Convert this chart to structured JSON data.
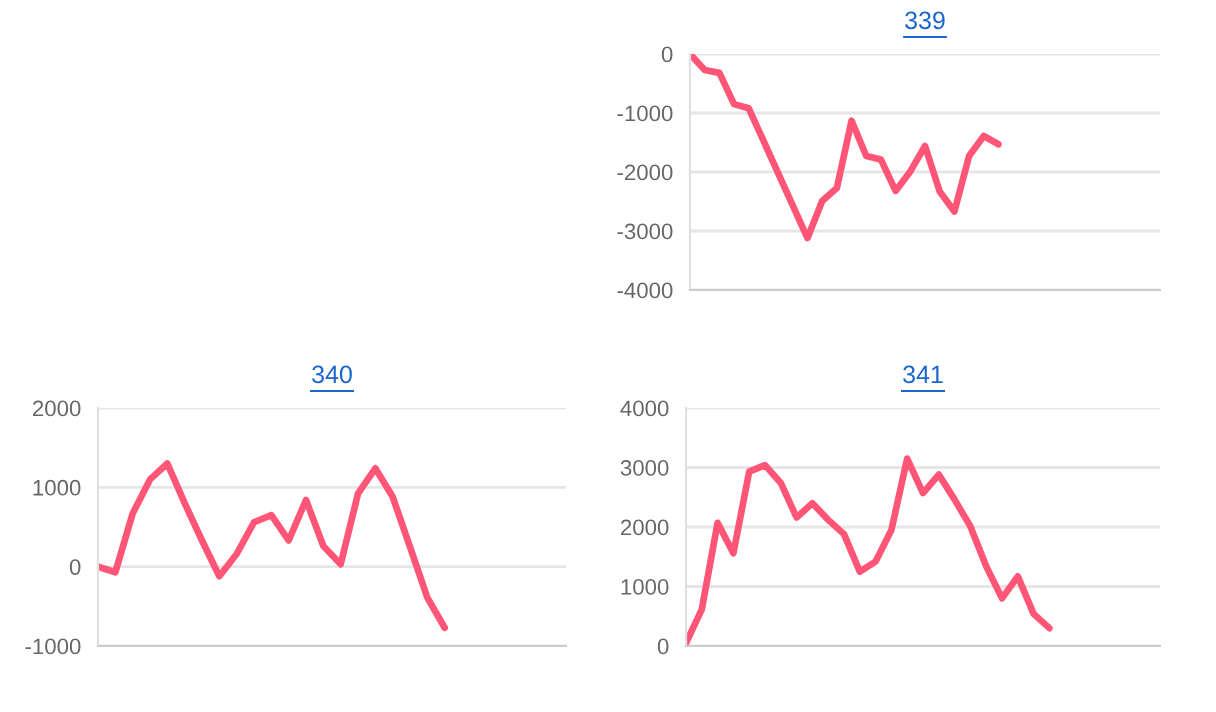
{
  "chart_data": [
    {
      "type": "line",
      "title": "339",
      "categories": [
        null,
        null,
        null,
        null,
        null,
        null,
        null,
        null,
        null,
        null,
        null,
        null,
        null,
        null,
        null,
        null,
        null,
        null,
        null,
        null,
        null,
        null,
        null,
        null,
        null,
        null,
        null,
        null,
        null,
        null,
        null,
        null,
        null
      ],
      "series": [
        {
          "color": "#ff5577",
          "values": [
            0,
            -270,
            -320,
            -850,
            -920,
            -1470,
            -2020,
            -2570,
            -3120,
            -2490,
            -2270,
            -1130,
            -1730,
            -1790,
            -2320,
            -1990,
            -1560,
            -2330,
            -2670,
            -1730,
            -1390,
            -1530,
            null,
            null,
            null,
            null,
            null,
            null,
            null,
            null,
            null,
            null,
            null
          ]
        }
      ],
      "ylim": [
        -4000,
        0
      ],
      "yticks": [
        -4000,
        -3000,
        -2000,
        -1000,
        0
      ],
      "grid": "y",
      "legend": false
    },
    {
      "type": "line",
      "title": "340",
      "categories": [
        null,
        null,
        null,
        null,
        null,
        null,
        null,
        null,
        null,
        null,
        null,
        null,
        null,
        null,
        null,
        null,
        null,
        null,
        null,
        null,
        null,
        null,
        null,
        null,
        null,
        null,
        null,
        null
      ],
      "series": [
        {
          "color": "#ff5577",
          "values": [
            0,
            -70,
            670,
            1100,
            1300,
            800,
            330,
            -120,
            160,
            560,
            650,
            330,
            840,
            260,
            30,
            920,
            1240,
            880,
            250,
            -390,
            -770,
            null,
            null,
            null,
            null,
            null,
            null,
            null
          ]
        }
      ],
      "ylim": [
        -1000,
        2000
      ],
      "yticks": [
        -1000,
        0,
        1000,
        2000
      ],
      "grid": "y",
      "legend": false
    },
    {
      "type": "line",
      "title": "341",
      "categories": [
        null,
        null,
        null,
        null,
        null,
        null,
        null,
        null,
        null,
        null,
        null,
        null,
        null,
        null,
        null,
        null,
        null,
        null,
        null,
        null,
        null,
        null,
        null,
        null,
        null,
        null,
        null,
        null,
        null,
        null,
        null
      ],
      "series": [
        {
          "color": "#ff5577",
          "values": [
            50,
            615,
            2070,
            1560,
            2930,
            3040,
            2740,
            2160,
            2400,
            2120,
            1880,
            1250,
            1420,
            1950,
            3150,
            2570,
            2880,
            2460,
            2010,
            1340,
            800,
            1170,
            540,
            300,
            null,
            null,
            null,
            null,
            null,
            null,
            null
          ]
        }
      ],
      "ylim": [
        0,
        4000
      ],
      "yticks": [
        0,
        1000,
        2000,
        3000,
        4000
      ],
      "grid": "y",
      "legend": false
    }
  ]
}
